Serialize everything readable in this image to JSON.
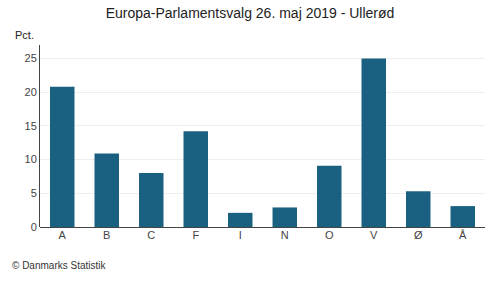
{
  "chart_data": {
    "type": "bar",
    "title": "Europa-Parlamentsvalg 26. maj 2019 - Ullerød",
    "categories": [
      "A",
      "B",
      "C",
      "F",
      "I",
      "N",
      "O",
      "V",
      "Ø",
      "Å"
    ],
    "values": [
      20.8,
      10.9,
      8.0,
      14.2,
      2.1,
      2.9,
      9.1,
      25.0,
      5.3,
      3.1
    ],
    "color": "#1a6080",
    "ylabel": "Pct.",
    "ylim": [
      0,
      27
    ],
    "yticks": [
      0,
      5,
      10,
      15,
      20,
      25
    ],
    "grid": true,
    "annotations": [
      "© Danmarks Statistik"
    ]
  }
}
